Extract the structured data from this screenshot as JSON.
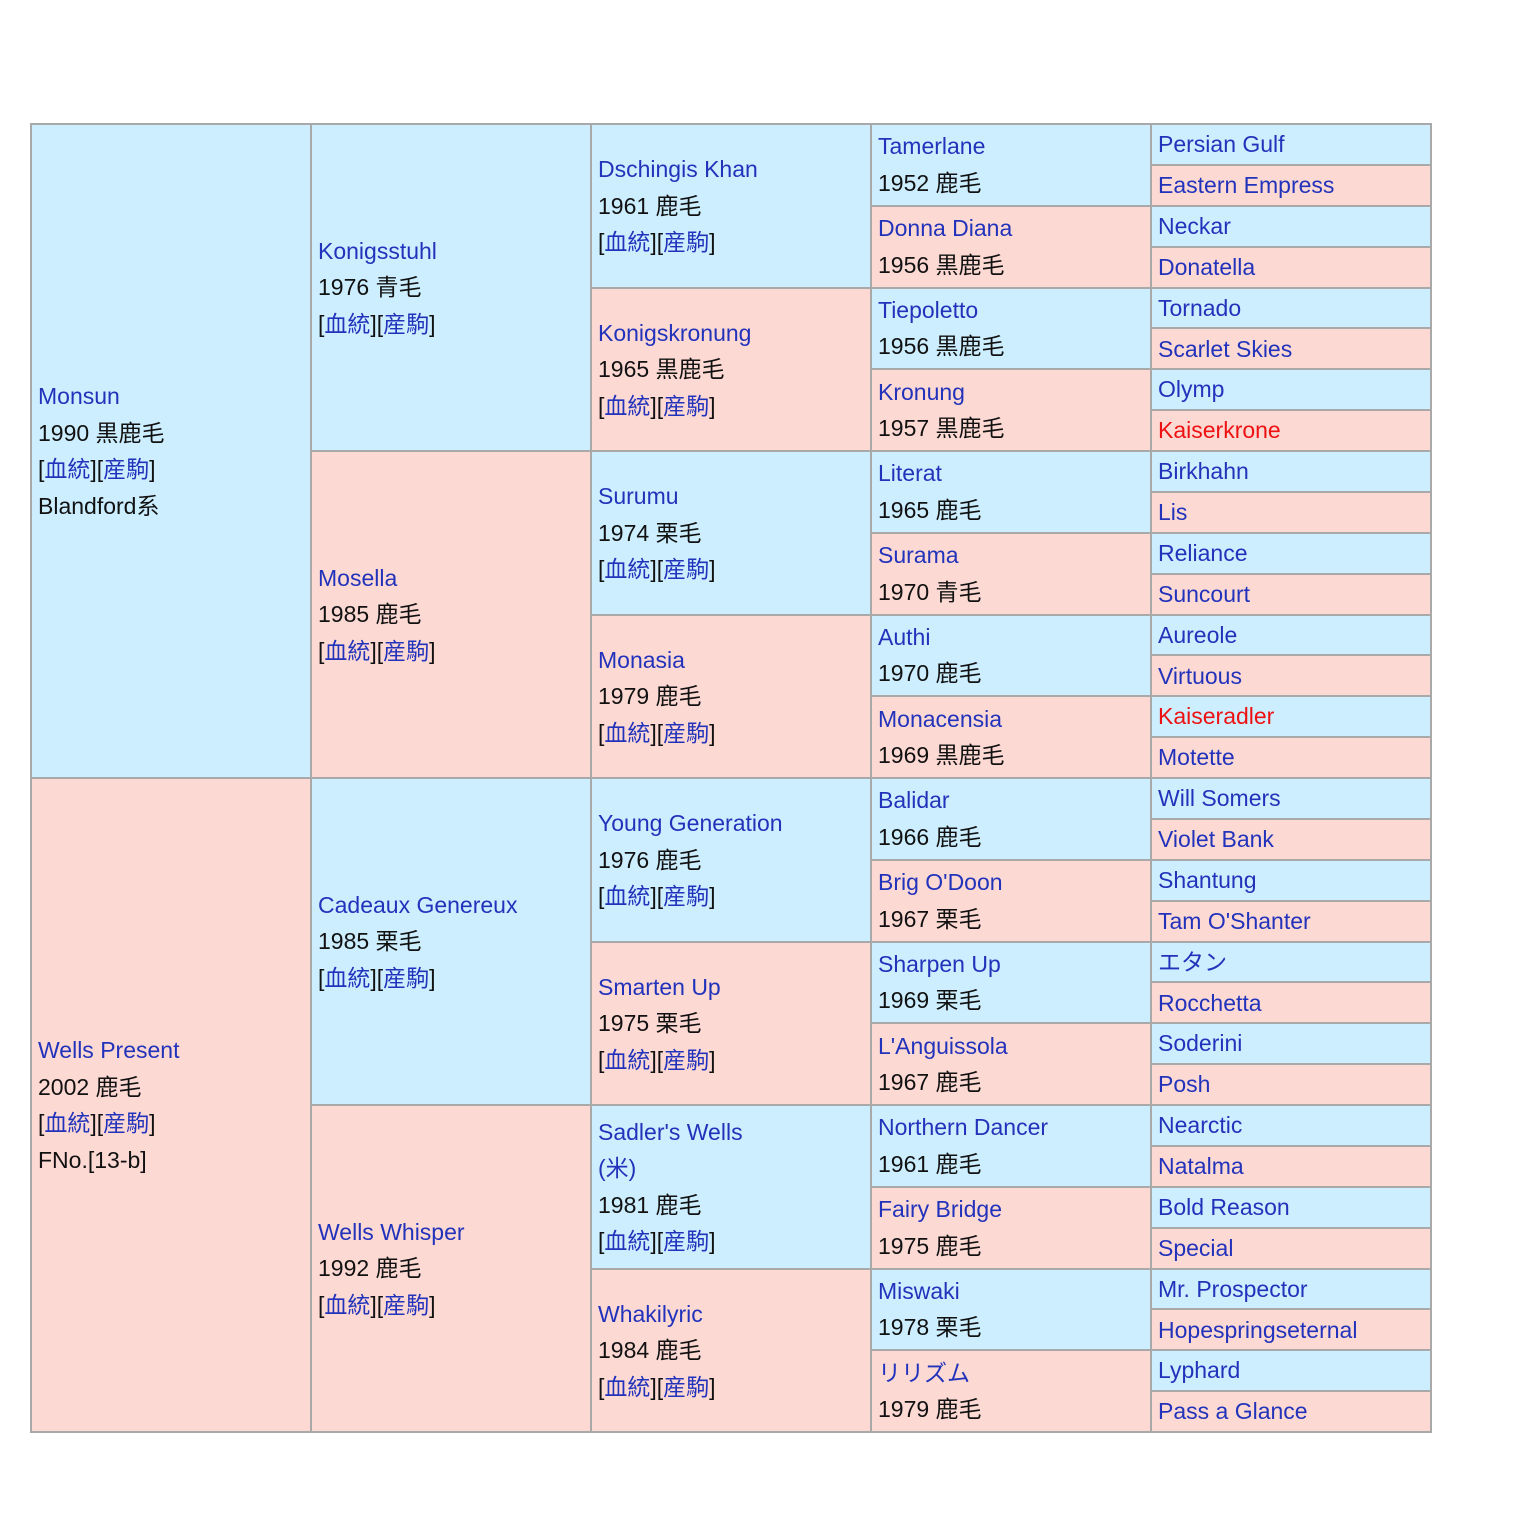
{
  "links": {
    "pedigree": "血統",
    "progeny": "産駒"
  },
  "subject_sire": {
    "name": "Monsun",
    "info": "1990 黒鹿毛",
    "line": "Blandford系"
  },
  "subject_dam": {
    "name": "Wells Present",
    "info": "2002 鹿毛",
    "family": "FNo.[13-b]"
  },
  "g2": [
    {
      "name": "Konigsstuhl",
      "info": "1976 青毛"
    },
    {
      "name": "Mosella",
      "info": "1985 鹿毛"
    },
    {
      "name": "Cadeaux Genereux",
      "info": "1985 栗毛"
    },
    {
      "name": "Wells Whisper",
      "info": "1992 鹿毛"
    }
  ],
  "g3": [
    {
      "name": "Dschingis Khan",
      "info": "1961 鹿毛"
    },
    {
      "name": "Konigskronung",
      "info": "1965 黒鹿毛"
    },
    {
      "name": "Surumu",
      "info": "1974 栗毛"
    },
    {
      "name": "Monasia",
      "info": "1979 鹿毛"
    },
    {
      "name": "Young Generation",
      "info": "1976 鹿毛"
    },
    {
      "name": "Smarten Up",
      "info": "1975 栗毛"
    },
    {
      "name": "Sadler's Wells",
      "country": "(米)",
      "info": "1981 鹿毛"
    },
    {
      "name": "Whakilyric",
      "info": "1984 鹿毛"
    }
  ],
  "g4": [
    {
      "name": "Tamerlane",
      "info": "1952 鹿毛"
    },
    {
      "name": "Donna Diana",
      "info": "1956 黒鹿毛"
    },
    {
      "name": "Tiepoletto",
      "info": "1956 黒鹿毛"
    },
    {
      "name": "Kronung",
      "info": "1957 黒鹿毛"
    },
    {
      "name": "Literat",
      "info": "1965 鹿毛"
    },
    {
      "name": "Surama",
      "info": "1970 青毛"
    },
    {
      "name": "Authi",
      "info": "1970 鹿毛"
    },
    {
      "name": "Monacensia",
      "info": "1969 黒鹿毛"
    },
    {
      "name": "Balidar",
      "info": "1966 鹿毛"
    },
    {
      "name": "Brig O'Doon",
      "info": "1967 栗毛"
    },
    {
      "name": "Sharpen Up",
      "info": "1969 栗毛"
    },
    {
      "name": "L'Anguissola",
      "info": "1967 鹿毛"
    },
    {
      "name": "Northern Dancer",
      "info": "1961 鹿毛"
    },
    {
      "name": "Fairy Bridge",
      "info": "1975 鹿毛"
    },
    {
      "name": "Miswaki",
      "info": "1978 栗毛"
    },
    {
      "name": "リリズム",
      "info": "1979 鹿毛"
    }
  ],
  "g5": [
    {
      "name": "Persian Gulf"
    },
    {
      "name": "Eastern Empress"
    },
    {
      "name": "Neckar"
    },
    {
      "name": "Donatella"
    },
    {
      "name": "Tornado"
    },
    {
      "name": "Scarlet Skies"
    },
    {
      "name": "Olymp"
    },
    {
      "name": "Kaiserkrone",
      "inbred": true
    },
    {
      "name": "Birkhahn"
    },
    {
      "name": "Lis"
    },
    {
      "name": "Reliance"
    },
    {
      "name": "Suncourt"
    },
    {
      "name": "Aureole"
    },
    {
      "name": "Virtuous"
    },
    {
      "name": "Kaiseradler",
      "inbred": true
    },
    {
      "name": "Motette"
    },
    {
      "name": "Will Somers"
    },
    {
      "name": "Violet Bank"
    },
    {
      "name": "Shantung"
    },
    {
      "name": "Tam O'Shanter"
    },
    {
      "name": "エタン"
    },
    {
      "name": "Rocchetta"
    },
    {
      "name": "Soderini"
    },
    {
      "name": "Posh"
    },
    {
      "name": "Nearctic"
    },
    {
      "name": "Natalma"
    },
    {
      "name": "Bold Reason"
    },
    {
      "name": "Special"
    },
    {
      "name": "Mr. Prospector"
    },
    {
      "name": "Hopespringseternal"
    },
    {
      "name": "Lyphard"
    },
    {
      "name": "Pass a Glance"
    }
  ],
  "colors": {
    "male_cell": "#cceeff",
    "female_cell": "#fdd9d4",
    "link": "#2233bb",
    "inbreeding": "#ee1111"
  }
}
